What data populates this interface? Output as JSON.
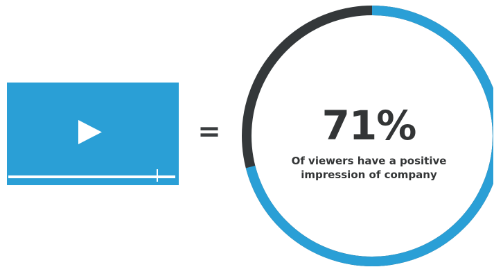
{
  "colors": {
    "accent": "#2a9fd6",
    "ring_remainder": "#34383a",
    "text": "#333536",
    "background": "#ffffff"
  },
  "video": {
    "play_icon": "play-icon",
    "progress": 0.89
  },
  "equals": "=",
  "stat": {
    "percent": 71,
    "value_text": "71%",
    "caption_line1": "Of viewers have a positive",
    "caption_line2": "impression of company"
  }
}
